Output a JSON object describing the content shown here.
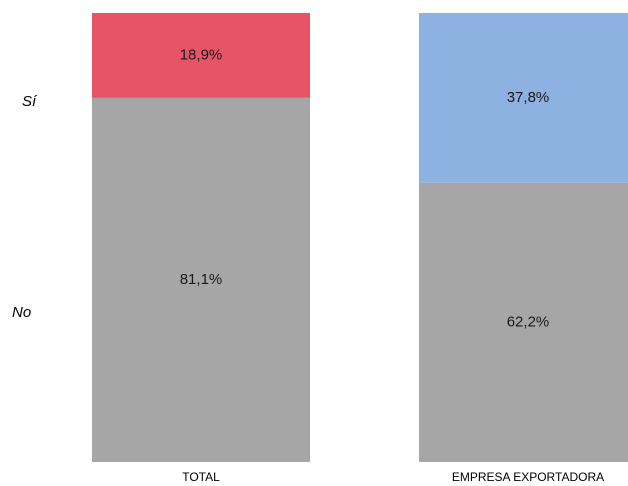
{
  "chart_data": {
    "type": "bar",
    "stacked": true,
    "percent": true,
    "categories": [
      "TOTAL",
      "EMPRESA EXPORTADORA"
    ],
    "series": [
      {
        "name": "No",
        "values": [
          81.1,
          62.2
        ],
        "labels": [
          "81,1%",
          "62,2%"
        ],
        "colors": [
          "#a6a6a6",
          "#a6a6a6"
        ]
      },
      {
        "name": "Sí",
        "values": [
          18.9,
          37.8
        ],
        "labels": [
          "18,9%",
          "37,8%"
        ],
        "colors": [
          "#e75467",
          "#8db2e1"
        ]
      }
    ],
    "ylim": [
      0,
      100
    ],
    "grid": false,
    "legend_position": "left"
  }
}
